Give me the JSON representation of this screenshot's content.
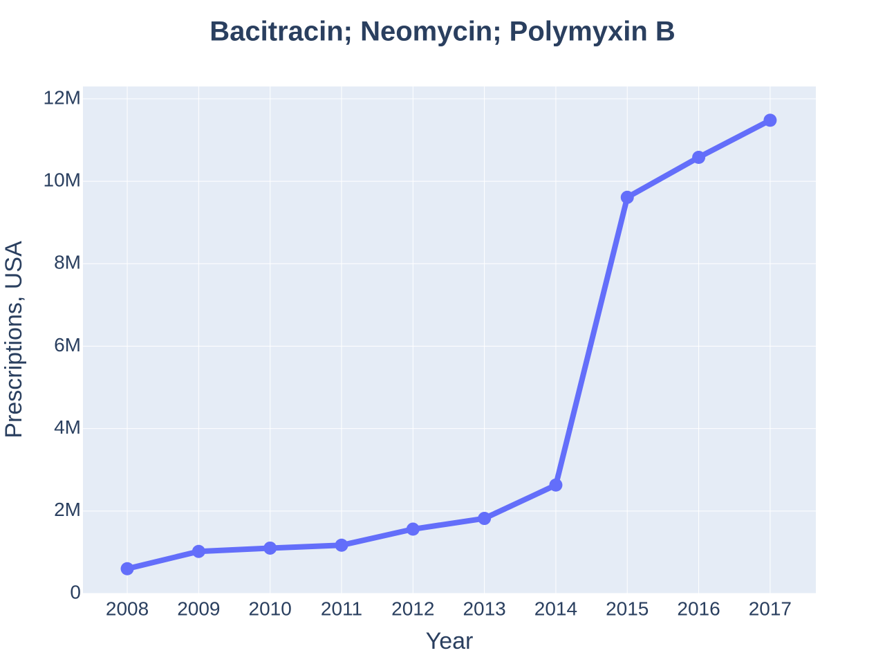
{
  "chart_data": {
    "type": "line",
    "title": "Bacitracin; Neomycin; Polymyxin B",
    "x_label": "Year",
    "y_label": "Prescriptions, USA",
    "x": [
      2008,
      2009,
      2010,
      2011,
      2012,
      2013,
      2014,
      2015,
      2016,
      2017
    ],
    "series": [
      {
        "name": "Bacitracin; Neomycin; Polymyxin B",
        "color": "#636efa",
        "values": [
          600000,
          1020000,
          1100000,
          1170000,
          1560000,
          1820000,
          2630000,
          9610000,
          10580000,
          11480000
        ]
      }
    ],
    "xlim": [
      2007.38,
      2017.64
    ],
    "xticks": [
      2008,
      2009,
      2010,
      2011,
      2012,
      2013,
      2014,
      2015,
      2016,
      2017
    ],
    "ylim": [
      0,
      12300000
    ],
    "yticks": [
      0,
      {
        "value": 2000000,
        "label": "2M"
      },
      {
        "value": 4000000,
        "label": "4M"
      },
      {
        "value": 6000000,
        "label": "6M"
      },
      {
        "value": 8000000,
        "label": "8M"
      },
      {
        "value": 10000000,
        "label": "10M"
      },
      {
        "value": 12000000,
        "label": "12M"
      }
    ],
    "grid": true,
    "background": "#e5ecf6"
  }
}
